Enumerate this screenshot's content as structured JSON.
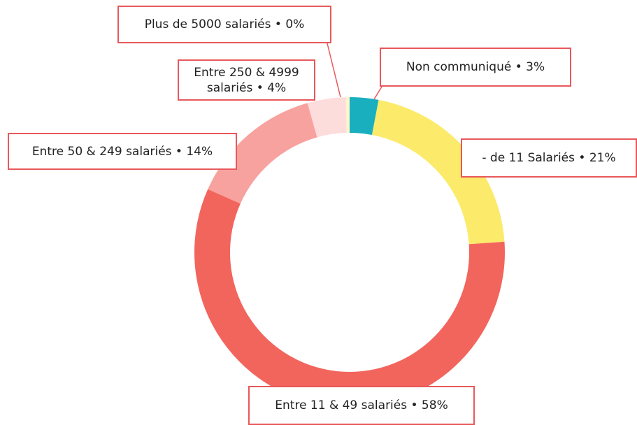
{
  "chart_data": {
    "type": "donut",
    "values": [
      3,
      21,
      58,
      14,
      4,
      0.4
    ],
    "value_labels": [
      "Non communiqué • 3%",
      "- de 11 Salariés • 21%",
      "Entre 11 & 49 salariés • 58%",
      "Entre 50 & 249 salariés • 14%",
      "Entre 250 & 4999 salariés • 4%",
      "Plus de 5000 salariés • 0%"
    ],
    "colors": [
      "#1aafbf",
      "#fcea6a",
      "#f2655d",
      "#f7a29e",
      "#fddcdc",
      "#fef5cc"
    ]
  }
}
